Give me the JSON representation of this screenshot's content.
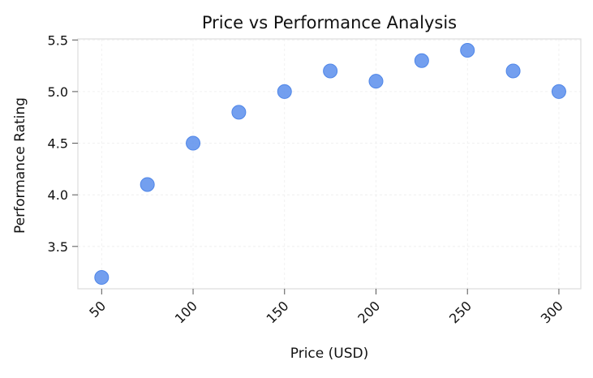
{
  "chart_data": {
    "type": "scatter",
    "title": "Price vs Performance Analysis",
    "xlabel": "Price (USD)",
    "ylabel": "Performance Rating",
    "x": [
      50,
      75,
      100,
      125,
      150,
      175,
      200,
      225,
      250,
      275,
      300
    ],
    "y": [
      3.2,
      4.1,
      4.5,
      4.8,
      5.0,
      5.2,
      5.1,
      5.3,
      5.4,
      5.2,
      5.0
    ],
    "xlim": [
      37,
      312
    ],
    "ylim": [
      3.09,
      5.51
    ],
    "xticks": [
      "50",
      "100",
      "150",
      "200",
      "250",
      "300"
    ],
    "yticks": [
      "3.5",
      "4.0",
      "4.5",
      "5.0",
      "5.5"
    ],
    "grid": true,
    "colors": {
      "point_fill": "#6495ED",
      "point_edge": "#4F86E8",
      "grid": "#eeeeee",
      "axes": "#dddddd"
    }
  }
}
